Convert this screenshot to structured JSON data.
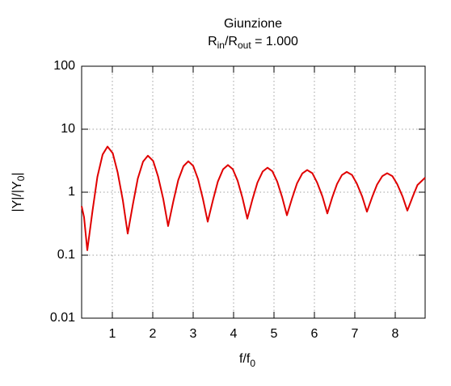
{
  "chart_data": {
    "type": "line",
    "title": "Giunzione",
    "subtitle": [
      "R",
      "in",
      "/R",
      "out",
      " = 1.000"
    ],
    "x_label": [
      "f/f",
      "0"
    ],
    "y_label": [
      "|Y|/|Y",
      "0",
      "|"
    ],
    "x": [
      0.24,
      0.3,
      0.38,
      0.51,
      0.63,
      0.76,
      0.88,
      1.01,
      1.13,
      1.26,
      1.38,
      1.51,
      1.63,
      1.76,
      1.88,
      2.01,
      2.13,
      2.26,
      2.38,
      2.51,
      2.63,
      2.76,
      2.88,
      3.0,
      3.12,
      3.24,
      3.36,
      3.49,
      3.61,
      3.74,
      3.86,
      3.98,
      4.1,
      4.22,
      4.34,
      4.47,
      4.59,
      4.72,
      4.84,
      4.96,
      5.08,
      5.2,
      5.32,
      5.45,
      5.57,
      5.7,
      5.82,
      5.95,
      6.07,
      6.2,
      6.32,
      6.44,
      6.56,
      6.68,
      6.8,
      6.93,
      7.05,
      7.18,
      7.3,
      7.43,
      7.55,
      7.68,
      7.8,
      7.93,
      8.05,
      8.18,
      8.3,
      8.43,
      8.55,
      8.74
    ],
    "series": [
      {
        "color": "#e00000",
        "values": [
          0.6,
          0.4,
          0.12,
          0.51,
          1.75,
          3.97,
          5.3,
          4.16,
          2.08,
          0.74,
          0.22,
          0.65,
          1.65,
          3.06,
          3.8,
          3.13,
          1.79,
          0.78,
          0.29,
          0.72,
          1.55,
          2.59,
          3.1,
          2.62,
          1.62,
          0.79,
          0.34,
          0.75,
          1.47,
          2.31,
          2.7,
          2.32,
          1.52,
          0.81,
          0.38,
          0.78,
          1.42,
          2.13,
          2.45,
          2.15,
          1.47,
          0.84,
          0.43,
          0.81,
          1.38,
          1.98,
          2.25,
          2.0,
          1.41,
          0.85,
          0.46,
          0.82,
          1.35,
          1.87,
          2.1,
          1.88,
          1.37,
          0.86,
          0.49,
          0.84,
          1.32,
          1.8,
          2.0,
          1.8,
          1.34,
          0.86,
          0.51,
          0.84,
          1.3,
          1.7
        ]
      }
    ],
    "xlim": [
      0.24,
      8.74
    ],
    "xticks": [
      1,
      2,
      3,
      4,
      5,
      6,
      7,
      8
    ],
    "ylim": [
      0.01,
      100
    ],
    "yticks": [
      0.01,
      0.1,
      1,
      10,
      100
    ],
    "ylog": true,
    "grid": true
  }
}
